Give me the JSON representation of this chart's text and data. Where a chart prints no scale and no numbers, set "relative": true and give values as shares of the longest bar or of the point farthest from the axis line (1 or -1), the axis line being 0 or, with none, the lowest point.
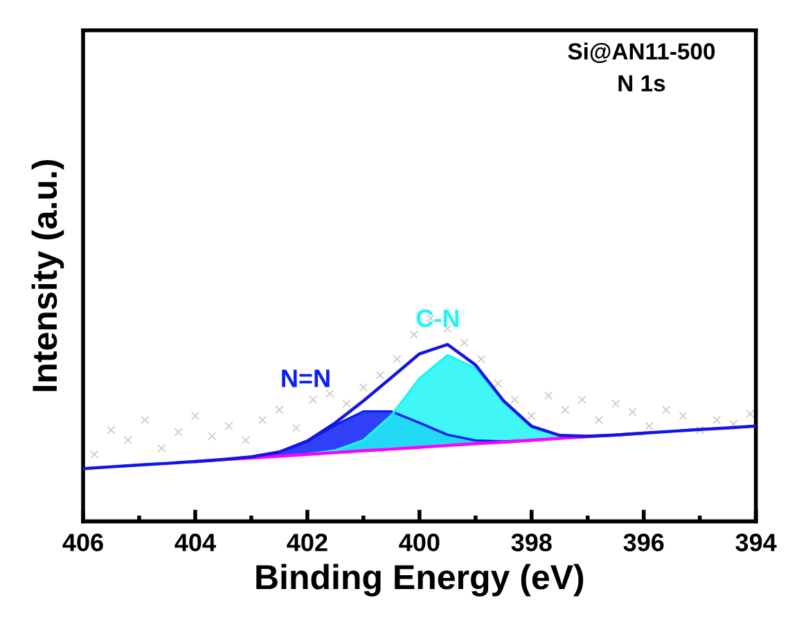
{
  "chart_data": {
    "type": "line",
    "relative": true,
    "xlabel": "Binding Energy (eV)",
    "ylabel": "Intensity (a.u.)",
    "annotations": [
      "Si@AN11-500",
      "N 1s"
    ],
    "xlim": [
      406,
      394
    ],
    "xticks": [
      406,
      {
        "value": 405,
        "label": null
      },
      404,
      {
        "value": 403,
        "label": null
      },
      402,
      {
        "value": 401,
        "label": null
      },
      400,
      {
        "value": 399,
        "label": null
      },
      398,
      {
        "value": 397,
        "label": null
      },
      396,
      {
        "value": 395,
        "label": null
      },
      394
    ],
    "x": [
      406,
      405.5,
      405,
      404.5,
      404,
      403.5,
      403,
      402.5,
      402,
      401.5,
      401,
      400.5,
      400,
      399.5,
      399,
      398.5,
      398,
      397.5,
      397,
      396.5,
      396,
      395.5,
      395,
      394.5,
      394
    ],
    "series": [
      {
        "type": "scatter",
        "marker": "cross",
        "color": "#c8c8c8",
        "x": [
          405.8,
          405.5,
          405.2,
          404.9,
          404.6,
          404.3,
          404.0,
          403.7,
          403.4,
          403.1,
          402.8,
          402.5,
          402.2,
          401.9,
          401.6,
          401.3,
          401.0,
          400.7,
          400.4,
          400.1,
          399.8,
          399.5,
          399.2,
          398.9,
          398.6,
          398.3,
          398.0,
          397.7,
          397.4,
          397.1,
          396.8,
          396.5,
          396.2,
          395.9,
          395.6,
          395.3,
          395.0,
          394.7,
          394.4,
          394.1
        ],
        "values": [
          0.33,
          0.45,
          0.4,
          0.5,
          0.36,
          0.44,
          0.52,
          0.42,
          0.47,
          0.4,
          0.5,
          0.55,
          0.46,
          0.6,
          0.63,
          0.58,
          0.66,
          0.72,
          0.8,
          0.92,
          1.0,
          0.95,
          0.88,
          0.8,
          0.68,
          0.6,
          0.52,
          0.62,
          0.55,
          0.6,
          0.5,
          0.58,
          0.54,
          0.47,
          0.55,
          0.52,
          0.45,
          0.5,
          0.48,
          0.53
        ]
      },
      {
        "color": "#ff00ff",
        "values": [
          null,
          null,
          null,
          null,
          0.295,
          0.304,
          0.313,
          0.321,
          0.33,
          0.339,
          0.348,
          0.356,
          0.365,
          0.374,
          0.383,
          0.391,
          0.4,
          0.409,
          0.418,
          0.426,
          0.435,
          null,
          null,
          null,
          null
        ]
      },
      {
        "type": "area",
        "name": "N=N",
        "color": "#0a1ff5",
        "values": [
          0.26,
          0.269,
          0.278,
          0.286,
          0.295,
          0.305,
          0.318,
          0.342,
          0.395,
          0.475,
          0.542,
          0.542,
          0.486,
          0.427,
          0.399,
          0.394,
          0.4,
          0.409,
          0.418,
          0.426,
          0.435,
          0.444,
          0.453,
          0.461,
          0.47
        ]
      },
      {
        "type": "area",
        "name": "C-N",
        "color": "#1ef5f5",
        "values": [
          0.26,
          0.269,
          0.278,
          0.286,
          0.295,
          0.304,
          0.313,
          0.321,
          0.331,
          0.35,
          0.4,
          0.523,
          0.705,
          0.819,
          0.755,
          0.591,
          0.469,
          0.424,
          0.42,
          0.426,
          0.435,
          0.444,
          0.453,
          0.461,
          0.47
        ]
      },
      {
        "color": "#1414e6",
        "values": [
          0.26,
          0.269,
          0.278,
          0.286,
          0.295,
          0.305,
          0.318,
          0.342,
          0.396,
          0.486,
          0.594,
          0.709,
          0.826,
          0.872,
          0.771,
          0.594,
          0.469,
          0.424,
          0.42,
          0.426,
          0.435,
          0.444,
          0.453,
          0.461,
          0.47
        ]
      }
    ]
  }
}
